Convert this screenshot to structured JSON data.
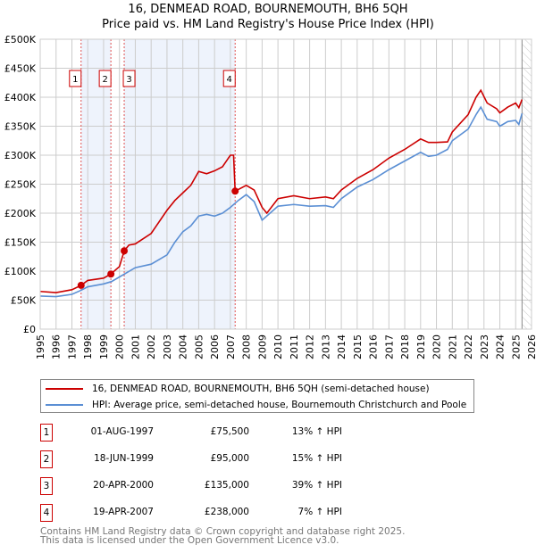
{
  "chart_data": {
    "type": "line",
    "title": "16, DENMEAD ROAD, BOURNEMOUTH, BH6 5QH",
    "subtitle": "Price paid vs. HM Land Registry's House Price Index (HPI)",
    "xlim": [
      1995,
      2026
    ],
    "ylim": [
      0,
      500000
    ],
    "x_ticks": [
      "1995",
      "1996",
      "1997",
      "1998",
      "1999",
      "2000",
      "2001",
      "2002",
      "2003",
      "2004",
      "2005",
      "2006",
      "2007",
      "2008",
      "2009",
      "2010",
      "2011",
      "2012",
      "2013",
      "2014",
      "2015",
      "2016",
      "2017",
      "2018",
      "2019",
      "2020",
      "2021",
      "2022",
      "2023",
      "2024",
      "2025",
      "2026"
    ],
    "y_ticks": [
      {
        "v": 0,
        "l": "£0"
      },
      {
        "v": 50000,
        "l": "£50K"
      },
      {
        "v": 100000,
        "l": "£100K"
      },
      {
        "v": 150000,
        "l": "£150K"
      },
      {
        "v": 200000,
        "l": "£200K"
      },
      {
        "v": 250000,
        "l": "£250K"
      },
      {
        "v": 300000,
        "l": "£300K"
      },
      {
        "v": 350000,
        "l": "£350K"
      },
      {
        "v": 400000,
        "l": "£400K"
      },
      {
        "v": 450000,
        "l": "£450K"
      },
      {
        "v": 500000,
        "l": "£500K"
      }
    ],
    "grid": true,
    "forecast_from": 2025.4,
    "series": [
      {
        "name": "16, DENMEAD ROAD, BOURNEMOUTH, BH6 5QH (semi-detached house)",
        "color": "#cc0000",
        "x": [
          1995,
          1996,
          1997,
          1997.58,
          1998,
          1999,
          1999.46,
          2000,
          2000.3,
          2000.6,
          2001,
          2002,
          2003,
          2003.5,
          2004,
          2004.5,
          2005,
          2005.5,
          2006,
          2006.5,
          2007,
          2007.2,
          2007.3,
          2008,
          2008.5,
          2009,
          2009.3,
          2010,
          2011,
          2012,
          2013,
          2013.5,
          2014,
          2015,
          2016,
          2017,
          2018,
          2019,
          2019.5,
          2020,
          2020.7,
          2021,
          2022,
          2022.5,
          2022.8,
          2023.2,
          2023.8,
          2024,
          2024.5,
          2025,
          2025.2,
          2025.4
        ],
        "y": [
          65000,
          63000,
          68000,
          75500,
          84000,
          88000,
          95000,
          108000,
          135000,
          145000,
          147000,
          165000,
          205000,
          222000,
          235000,
          248000,
          272000,
          268000,
          273000,
          280000,
          300000,
          300000,
          238000,
          248000,
          240000,
          210000,
          200000,
          225000,
          230000,
          225000,
          228000,
          225000,
          240000,
          260000,
          275000,
          295000,
          310000,
          328000,
          322000,
          322000,
          323000,
          340000,
          370000,
          400000,
          412000,
          390000,
          380000,
          373000,
          383000,
          390000,
          382000,
          396000
        ]
      },
      {
        "name": "HPI: Average price, semi-detached house, Bournemouth Christchurch and Poole",
        "color": "#5b8fd4",
        "x": [
          1995,
          1996,
          1997,
          1997.58,
          1998,
          1999,
          1999.5,
          2000,
          2000.5,
          2001,
          2002,
          2003,
          2003.5,
          2004,
          2004.5,
          2005,
          2005.5,
          2006,
          2006.5,
          2007,
          2007.5,
          2008,
          2008.5,
          2009,
          2009.5,
          2010,
          2011,
          2012,
          2013,
          2013.5,
          2014,
          2015,
          2016,
          2017,
          2018,
          2019,
          2019.5,
          2020,
          2020.7,
          2021,
          2022,
          2022.5,
          2022.8,
          2023.2,
          2023.8,
          2024,
          2024.5,
          2025,
          2025.2,
          2025.4
        ],
        "y": [
          57000,
          56000,
          60000,
          67000,
          73000,
          78000,
          82000,
          90000,
          98000,
          106000,
          112000,
          128000,
          150000,
          168000,
          178000,
          195000,
          198000,
          195000,
          200000,
          210000,
          222000,
          232000,
          220000,
          188000,
          200000,
          212000,
          215000,
          212000,
          213000,
          210000,
          225000,
          245000,
          258000,
          275000,
          290000,
          305000,
          298000,
          300000,
          310000,
          325000,
          345000,
          370000,
          383000,
          362000,
          358000,
          350000,
          358000,
          360000,
          353000,
          372000
        ]
      }
    ],
    "sales": [
      {
        "label": "1",
        "date": "01-AUG-1997",
        "x": 1997.58,
        "price": 75500,
        "price_text": "£75,500",
        "hpi": "13% ↑ HPI"
      },
      {
        "label": "2",
        "date": "18-JUN-1999",
        "x": 1999.46,
        "price": 95000,
        "price_text": "£95,000",
        "hpi": "15% ↑ HPI"
      },
      {
        "label": "3",
        "date": "20-APR-2000",
        "x": 2000.3,
        "price": 135000,
        "price_text": "£135,000",
        "hpi": "39% ↑ HPI"
      },
      {
        "label": "4",
        "date": "19-APR-2007",
        "x": 2007.3,
        "price": 238000,
        "price_text": "£238,000",
        "hpi": "7% ↑ HPI"
      }
    ],
    "legend": {
      "position": "below"
    }
  },
  "footer": [
    "Contains HM Land Registry data © Crown copyright and database right 2025.",
    "This data is licensed under the Open Government Licence v3.0."
  ]
}
